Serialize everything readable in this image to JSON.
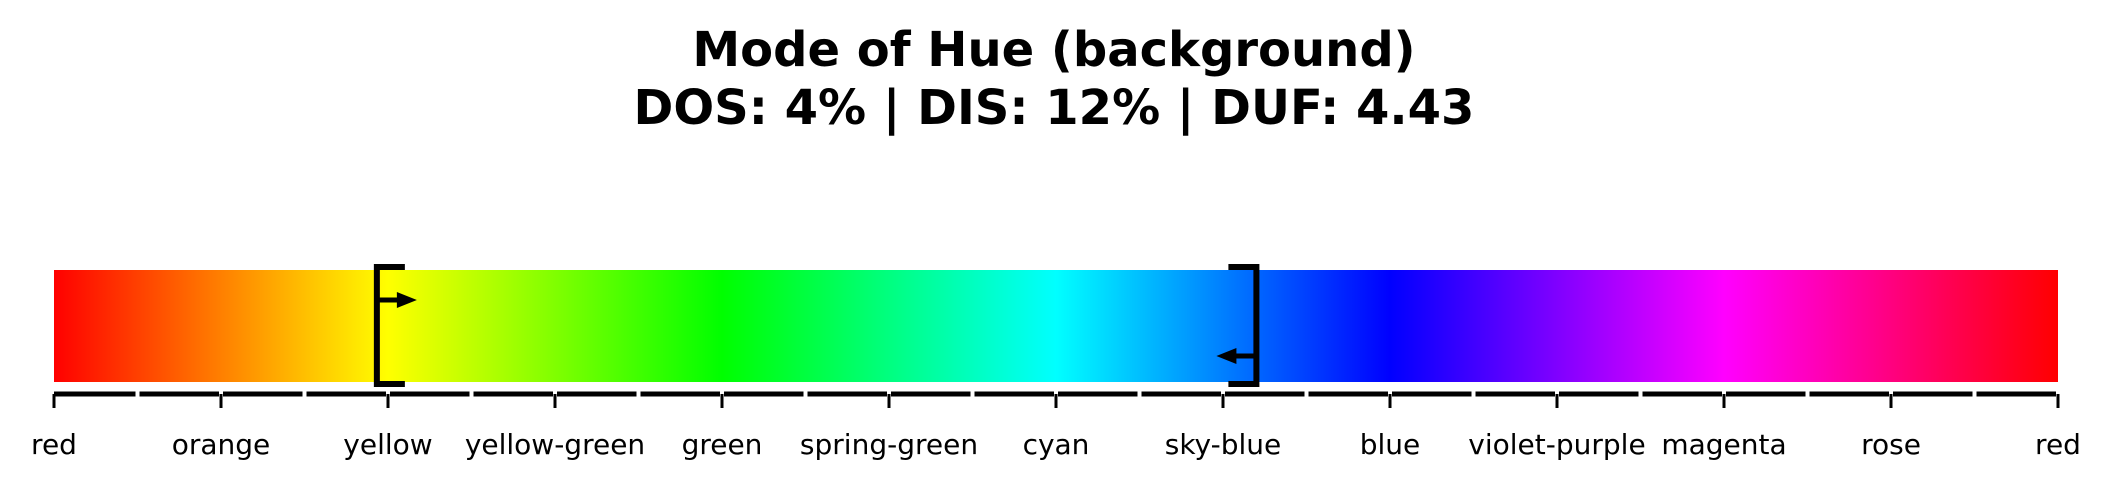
{
  "chart_data": {
    "type": "hue-bar",
    "title": "Mode of Hue (background)",
    "subtitle": "DOS: 4% | DIS: 12% | DUF: 4.43",
    "xlim": [
      0,
      360
    ],
    "ticks": [
      {
        "value": 0,
        "label": "red"
      },
      {
        "value": 30,
        "label": "orange"
      },
      {
        "value": 60,
        "label": "yellow"
      },
      {
        "value": 90,
        "label": "yellow-green"
      },
      {
        "value": 120,
        "label": "green"
      },
      {
        "value": 150,
        "label": "spring-green"
      },
      {
        "value": 180,
        "label": "cyan"
      },
      {
        "value": 210,
        "label": "sky-blue"
      },
      {
        "value": 240,
        "label": "blue"
      },
      {
        "value": 270,
        "label": "violet-purple"
      },
      {
        "value": 300,
        "label": "magenta"
      },
      {
        "value": 330,
        "label": "rose"
      },
      {
        "value": 360,
        "label": "red"
      }
    ],
    "range": {
      "start": 58,
      "end": 216
    },
    "colors": {
      "bracket": "#000000",
      "axis": "#000000"
    }
  }
}
